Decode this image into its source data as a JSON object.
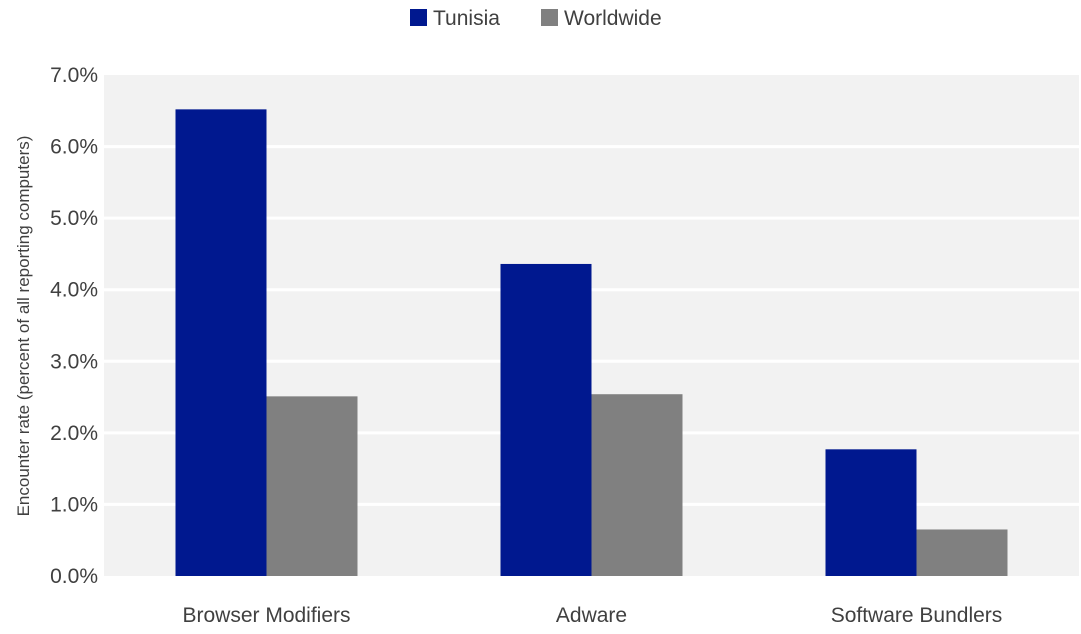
{
  "chart_data": {
    "type": "bar",
    "categories": [
      "Browser Modifiers",
      "Adware",
      "Software Bundlers"
    ],
    "series": [
      {
        "name": "Tunisia",
        "values": [
          6.52,
          4.36,
          1.77
        ],
        "color": "#00188F"
      },
      {
        "name": "Worldwide",
        "values": [
          2.51,
          2.54,
          0.65
        ],
        "color": "#808080"
      }
    ],
    "y_ticks": [
      "0.0%",
      "1.0%",
      "2.0%",
      "3.0%",
      "4.0%",
      "5.0%",
      "6.0%",
      "7.0%"
    ],
    "ylabel": "Encounter rate (percent of all reporting computers)",
    "ylim": [
      0,
      7
    ],
    "grid": true,
    "plot_background": "#F2F2F2",
    "gridline_color": "#FFFFFF",
    "legend_position": "top-center"
  }
}
